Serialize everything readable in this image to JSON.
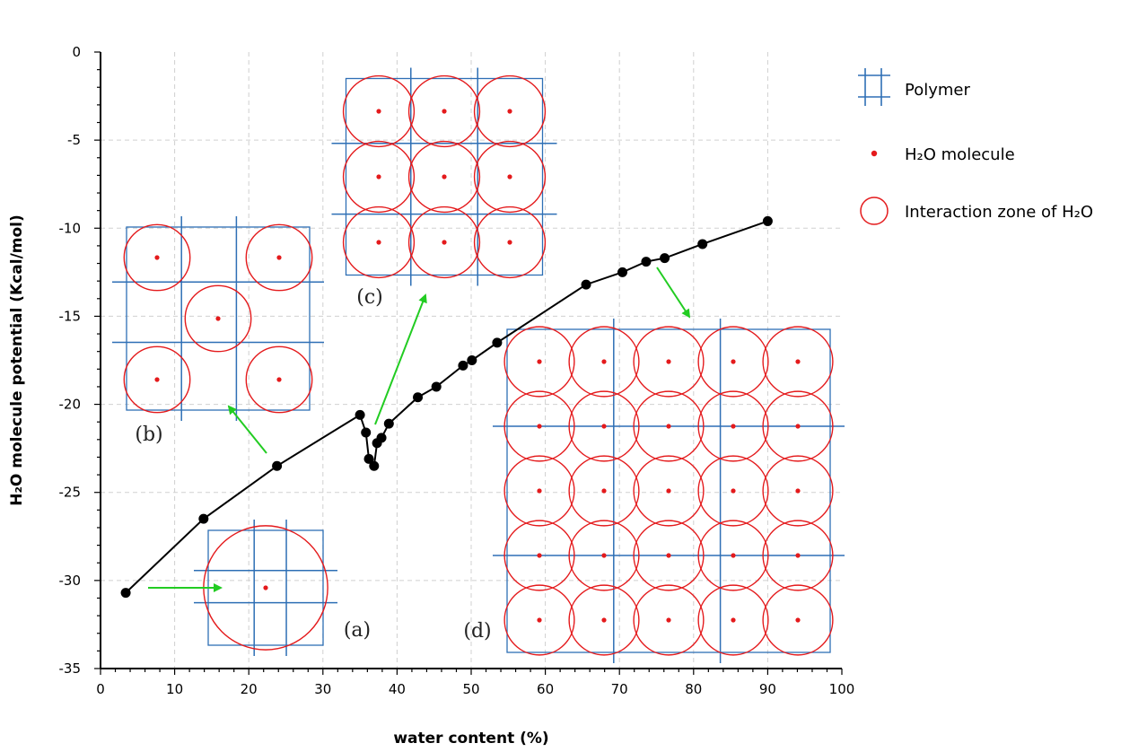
{
  "chart_data": {
    "type": "line",
    "title": "",
    "xlabel": "water content (%)",
    "ylabel": "H₂O molecule potential (Kcal/mol)",
    "xlim": [
      0,
      100
    ],
    "ylim": [
      -35,
      0
    ],
    "x_ticks": [
      "0",
      "10",
      "20",
      "30",
      "40",
      "50",
      "60",
      "70",
      "80",
      "90",
      "100"
    ],
    "y_ticks": [
      "0",
      "-5",
      "-10",
      "-15",
      "-20",
      "-25",
      "-30",
      "-35"
    ],
    "grid": true,
    "legend_position": "right",
    "series": [
      {
        "x": [
          3.4,
          13.9,
          23.8,
          35.0,
          35.8,
          36.2,
          36.9,
          37.3,
          37.9,
          38.9,
          42.8,
          45.3,
          48.9,
          50.1,
          53.5,
          65.5,
          70.4,
          73.6,
          76.1,
          81.2,
          90.0
        ],
        "y": [
          -30.7,
          -26.5,
          -23.5,
          -20.6,
          -21.6,
          -23.1,
          -23.5,
          -22.2,
          -21.9,
          -21.1,
          -19.6,
          -19.0,
          -17.8,
          -17.5,
          -16.5,
          -13.2,
          -12.5,
          -11.9,
          -11.7,
          -10.9,
          -9.6
        ],
        "color": "#000000"
      }
    ],
    "legend": [
      {
        "name": "Polymer",
        "icon": "polymer-grid-icon",
        "color": "#2e6fb5"
      },
      {
        "name": "H₂O molecule",
        "icon": "dot-icon",
        "color": "#e41a1c"
      },
      {
        "name": "Interaction zone of H₂O",
        "icon": "circle-icon",
        "color": "#e41a1c"
      }
    ],
    "annotations": [
      {
        "label": "(a)",
        "description": "1 water molecule"
      },
      {
        "label": "(b)",
        "description": "5 water molecules"
      },
      {
        "label": "(c)",
        "description": "3x3 water molecules"
      },
      {
        "label": "(d)",
        "description": "5x5 water molecules"
      }
    ],
    "colors": {
      "line": "#000000",
      "polymer": "#2e6fb5",
      "water": "#e41a1c",
      "arrow": "#22cc22",
      "grid": "#d0d0d0"
    }
  }
}
